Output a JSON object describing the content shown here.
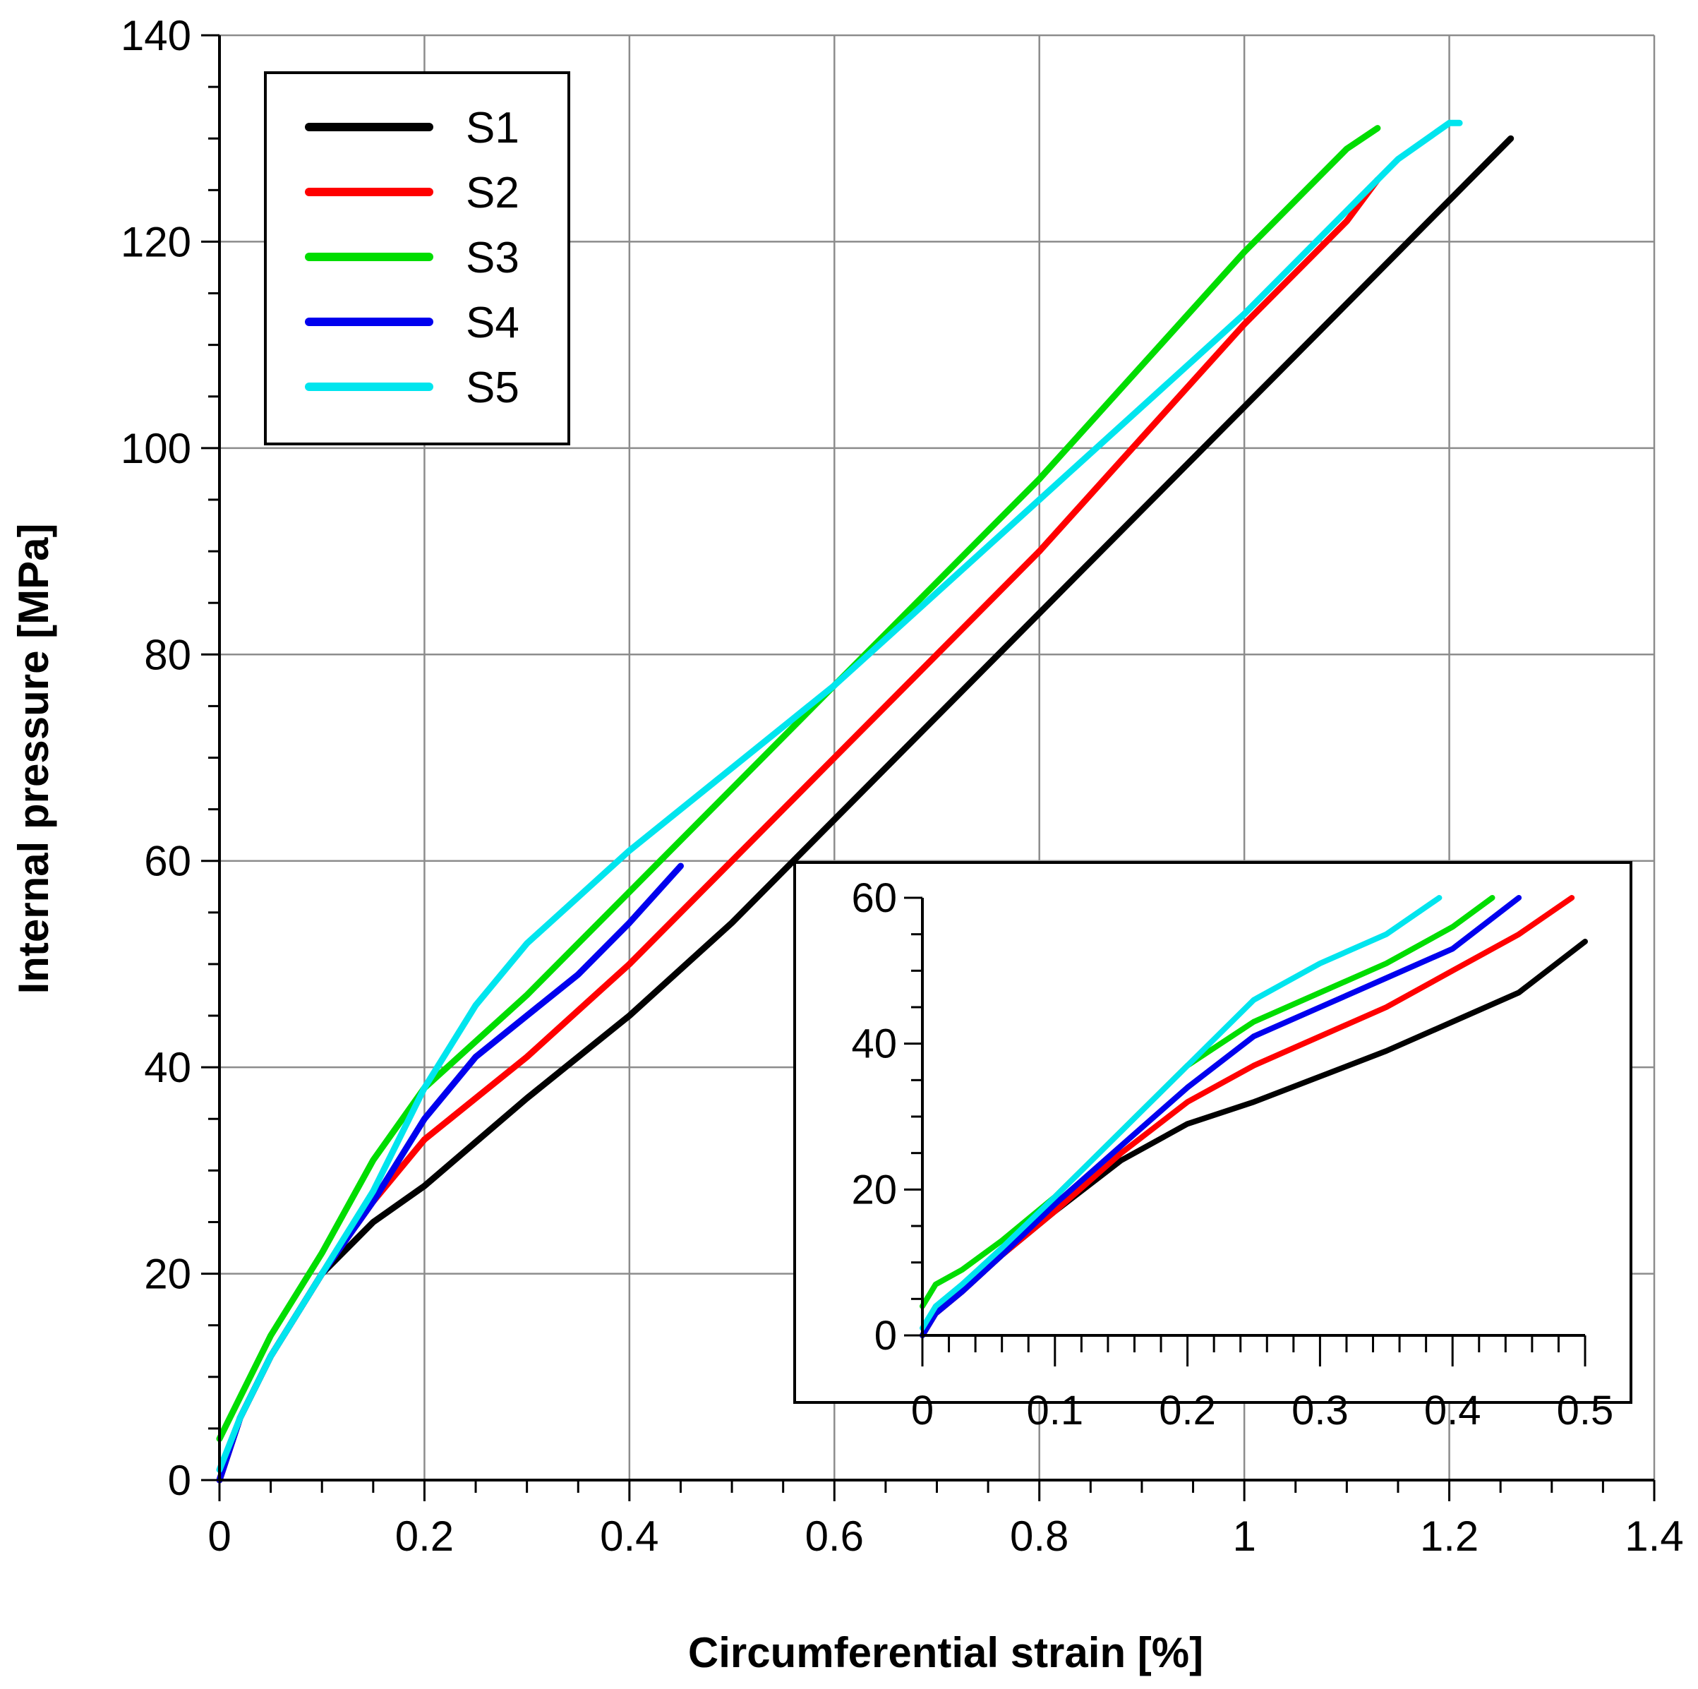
{
  "chart_data": [
    {
      "type": "line",
      "role": "main",
      "title": "",
      "xlabel": "Circumferential strain [%]",
      "ylabel": "Internal pressure [MPa]",
      "xlim": [
        0,
        1.4
      ],
      "ylim": [
        0,
        140
      ],
      "xticks": [
        0,
        0.2,
        0.4,
        0.6,
        0.8,
        1,
        1.2,
        1.4
      ],
      "yticks": [
        0,
        20,
        40,
        60,
        80,
        100,
        120,
        140
      ],
      "xtick_labels": [
        "0",
        "0.2",
        "0.4",
        "0.6",
        "0.8",
        "1",
        "1.2",
        "1.4"
      ],
      "ytick_labels": [
        "0",
        "20",
        "40",
        "60",
        "80",
        "100",
        "120",
        "140"
      ],
      "grid": true,
      "legend": "top-left",
      "series": [
        {
          "name": "S1",
          "color": "#000000",
          "x": [
            0,
            0.02,
            0.05,
            0.1,
            0.15,
            0.2,
            0.3,
            0.4,
            0.5,
            0.6,
            0.7,
            0.8,
            0.9,
            1.0,
            1.1,
            1.2,
            1.26
          ],
          "y": [
            0,
            6,
            12,
            20,
            25,
            28.5,
            37,
            45,
            54,
            64,
            74,
            84,
            94,
            104,
            114,
            124,
            130
          ]
        },
        {
          "name": "S2",
          "color": "#ff0000",
          "x": [
            0,
            0.02,
            0.05,
            0.1,
            0.15,
            0.2,
            0.25,
            0.3,
            0.4,
            0.5,
            0.6,
            0.7,
            0.8,
            0.9,
            1.0,
            1.1,
            1.13
          ],
          "y": [
            0,
            6,
            12,
            20,
            27,
            33,
            37,
            41,
            50,
            60,
            70,
            80,
            90,
            101,
            112,
            122,
            126
          ]
        },
        {
          "name": "S3",
          "color": "#00dd00",
          "x": [
            0,
            0.02,
            0.05,
            0.1,
            0.15,
            0.2,
            0.25,
            0.3,
            0.4,
            0.5,
            0.6,
            0.7,
            0.8,
            0.9,
            1.0,
            1.1,
            1.13
          ],
          "y": [
            4,
            8,
            14,
            22,
            31,
            38,
            42.5,
            47,
            57,
            67,
            77,
            87,
            97,
            108,
            119,
            129,
            131
          ]
        },
        {
          "name": "S4",
          "color": "#0000ee",
          "x": [
            0,
            0.02,
            0.05,
            0.1,
            0.15,
            0.2,
            0.25,
            0.3,
            0.35,
            0.4,
            0.45
          ],
          "y": [
            0,
            6,
            12,
            20,
            27,
            35,
            41,
            45,
            49,
            54,
            59.5
          ]
        },
        {
          "name": "S5",
          "color": "#00e5ee",
          "x": [
            0,
            0.02,
            0.05,
            0.1,
            0.15,
            0.2,
            0.25,
            0.3,
            0.35,
            0.4,
            0.5,
            0.6,
            0.7,
            0.8,
            0.9,
            1.0,
            1.1,
            1.15,
            1.2,
            1.21
          ],
          "y": [
            1,
            6,
            12,
            20,
            28,
            38,
            46,
            52,
            56.5,
            61,
            69,
            77,
            86,
            95,
            104,
            113,
            123,
            128,
            131.5,
            131.5
          ]
        }
      ]
    },
    {
      "type": "line",
      "role": "inset",
      "title": "",
      "xlabel": "",
      "ylabel": "",
      "xlim": [
        0,
        0.5
      ],
      "ylim": [
        0,
        60
      ],
      "xticks": [
        0,
        0.1,
        0.2,
        0.3,
        0.4,
        0.5
      ],
      "yticks": [
        0,
        20,
        40,
        60
      ],
      "xtick_labels": [
        "0",
        "0.1",
        "0.2",
        "0.3",
        "0.4",
        "0.5"
      ],
      "ytick_labels": [
        "0",
        "20",
        "40",
        "60"
      ],
      "grid": false,
      "series": [
        {
          "name": "S1",
          "color": "#000000",
          "x": [
            0,
            0.01,
            0.03,
            0.06,
            0.1,
            0.15,
            0.2,
            0.25,
            0.3,
            0.35,
            0.4,
            0.45,
            0.5
          ],
          "y": [
            0,
            3,
            6,
            11,
            17,
            24,
            29,
            32,
            35.5,
            39,
            43,
            47,
            54
          ]
        },
        {
          "name": "S2",
          "color": "#ff0000",
          "x": [
            0,
            0.01,
            0.03,
            0.06,
            0.1,
            0.15,
            0.2,
            0.25,
            0.3,
            0.35,
            0.4,
            0.45,
            0.49
          ],
          "y": [
            0,
            3,
            6,
            11,
            17,
            25,
            32,
            37,
            41,
            45,
            50,
            55,
            60
          ]
        },
        {
          "name": "S3",
          "color": "#00dd00",
          "x": [
            0,
            0.01,
            0.03,
            0.06,
            0.1,
            0.15,
            0.2,
            0.25,
            0.3,
            0.35,
            0.4,
            0.43
          ],
          "y": [
            4,
            7,
            9,
            13,
            19,
            28,
            37,
            43,
            47,
            51,
            56,
            60
          ]
        },
        {
          "name": "S4",
          "color": "#0000ee",
          "x": [
            0,
            0.01,
            0.03,
            0.06,
            0.1,
            0.15,
            0.2,
            0.25,
            0.3,
            0.35,
            0.4,
            0.45
          ],
          "y": [
            0,
            3,
            6,
            11,
            18,
            26,
            34,
            41,
            45,
            49,
            53,
            60
          ]
        },
        {
          "name": "S5",
          "color": "#00e5ee",
          "x": [
            0,
            0.01,
            0.03,
            0.06,
            0.1,
            0.15,
            0.2,
            0.25,
            0.3,
            0.35,
            0.39
          ],
          "y": [
            1,
            4,
            7,
            12,
            19,
            28,
            37,
            46,
            51,
            55,
            60
          ]
        }
      ]
    }
  ]
}
